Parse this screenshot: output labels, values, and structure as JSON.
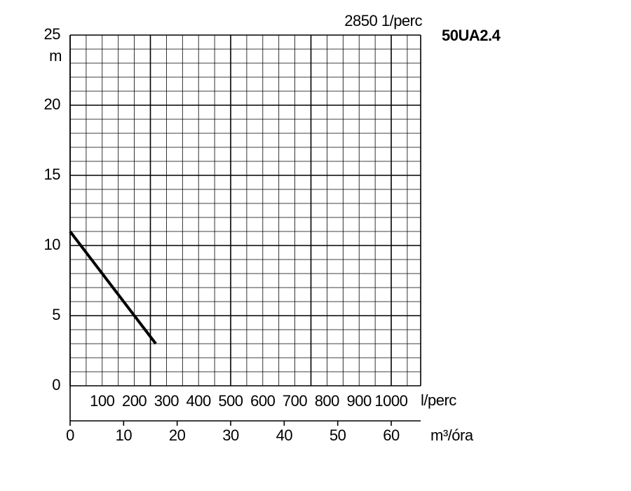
{
  "chart_data": {
    "type": "line",
    "title": "50UA2.4",
    "subtitle": "2850 1/perc",
    "ylabel": "m",
    "xlabel": "m³/óra",
    "x2label": "l/perc",
    "x": [
      0,
      16
    ],
    "series": [
      {
        "color": "#000000",
        "values": [
          11,
          3
        ]
      }
    ],
    "xlim": [
      0,
      65.5
    ],
    "xticks": [
      0,
      10,
      20,
      30,
      40,
      50,
      60
    ],
    "x2lim": [
      0,
      1092
    ],
    "x2ticks": [
      100,
      200,
      300,
      400,
      500,
      600,
      700,
      800,
      900,
      1000
    ],
    "ylim": [
      0,
      25
    ],
    "yticks": [
      0,
      5,
      10,
      15,
      20,
      25
    ],
    "grid": true
  }
}
